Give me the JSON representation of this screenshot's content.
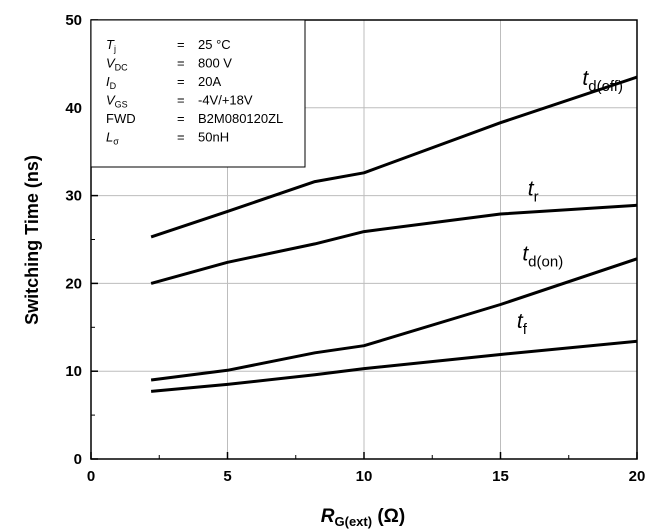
{
  "chart_data": {
    "type": "line",
    "xlabel": {
      "main": "R",
      "sub": "G(ext)",
      "unit": " (Ω)"
    },
    "ylabel": "Switching Time (ns)",
    "xlim": [
      0,
      20
    ],
    "ylim": [
      0,
      50
    ],
    "xticks": [
      "0",
      "5",
      "10",
      "15",
      "20"
    ],
    "yticks": [
      "0",
      "10",
      "20",
      "30",
      "40",
      "50"
    ],
    "grid": true,
    "series": [
      {
        "id": "tdoff",
        "name": {
          "main": "t",
          "sub": "d(off)"
        },
        "x": [
          2.2,
          5,
          8.2,
          10,
          15,
          20
        ],
        "y": [
          25.3,
          28.2,
          31.6,
          32.6,
          38.3,
          43.5
        ]
      },
      {
        "id": "tr",
        "name": {
          "main": "t",
          "sub": "r"
        },
        "x": [
          2.2,
          5,
          8.2,
          10,
          15,
          20
        ],
        "y": [
          20.0,
          22.4,
          24.5,
          25.9,
          27.9,
          28.9
        ]
      },
      {
        "id": "tdon",
        "name": {
          "main": "t",
          "sub": "d(on)"
        },
        "x": [
          2.2,
          5,
          8.2,
          10,
          15,
          20
        ],
        "y": [
          9.0,
          10.1,
          12.1,
          12.9,
          17.6,
          22.8
        ]
      },
      {
        "id": "tf",
        "name": {
          "main": "t",
          "sub": "f"
        },
        "x": [
          2.2,
          5,
          8.2,
          10,
          15,
          20
        ],
        "y": [
          7.7,
          8.5,
          9.6,
          10.3,
          11.9,
          13.4
        ]
      }
    ],
    "conditions": [
      {
        "label_main": "T",
        "label_sub": "j",
        "italic": true,
        "value": "25 °C"
      },
      {
        "label_main": "V",
        "label_sub": "DC",
        "italic": true,
        "value": "800 V"
      },
      {
        "label_main": "I",
        "label_sub": "D",
        "italic": true,
        "value": "20A"
      },
      {
        "label_main": "V",
        "label_sub": "GS",
        "italic": true,
        "value": "-4V/+18V"
      },
      {
        "label_main": "FWD",
        "label_sub": "",
        "italic": false,
        "value": "B2M080120ZL"
      },
      {
        "label_main": "L",
        "label_sub": "σ",
        "italic": true,
        "value": "50nH"
      }
    ],
    "equals": "="
  }
}
